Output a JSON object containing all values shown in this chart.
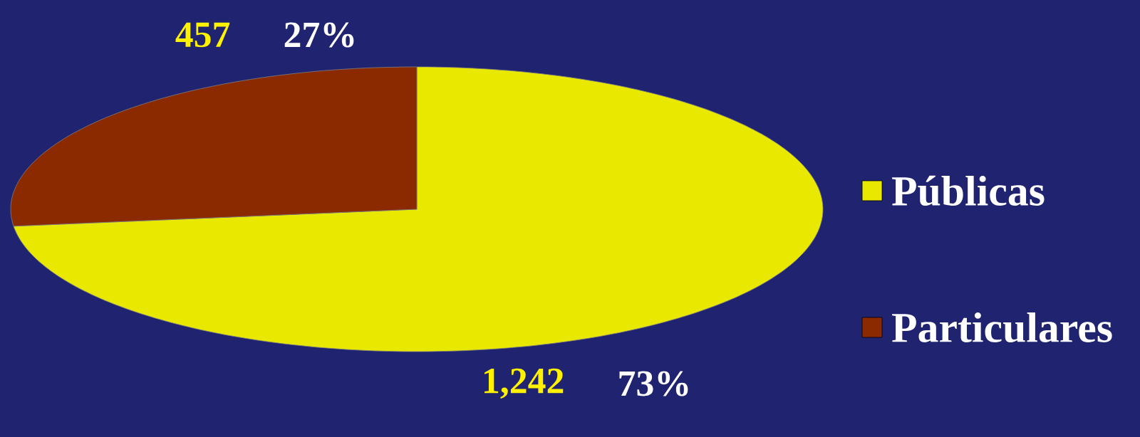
{
  "chart_data": {
    "type": "pie",
    "categories": [
      "Públicas",
      "Particulares"
    ],
    "values": [
      1242,
      457
    ],
    "value_labels": [
      "1,242",
      "457"
    ],
    "annotations": [
      "73%",
      "27%"
    ],
    "colors": [
      "#e8e800",
      "#8b2a00"
    ],
    "legend": "right"
  }
}
